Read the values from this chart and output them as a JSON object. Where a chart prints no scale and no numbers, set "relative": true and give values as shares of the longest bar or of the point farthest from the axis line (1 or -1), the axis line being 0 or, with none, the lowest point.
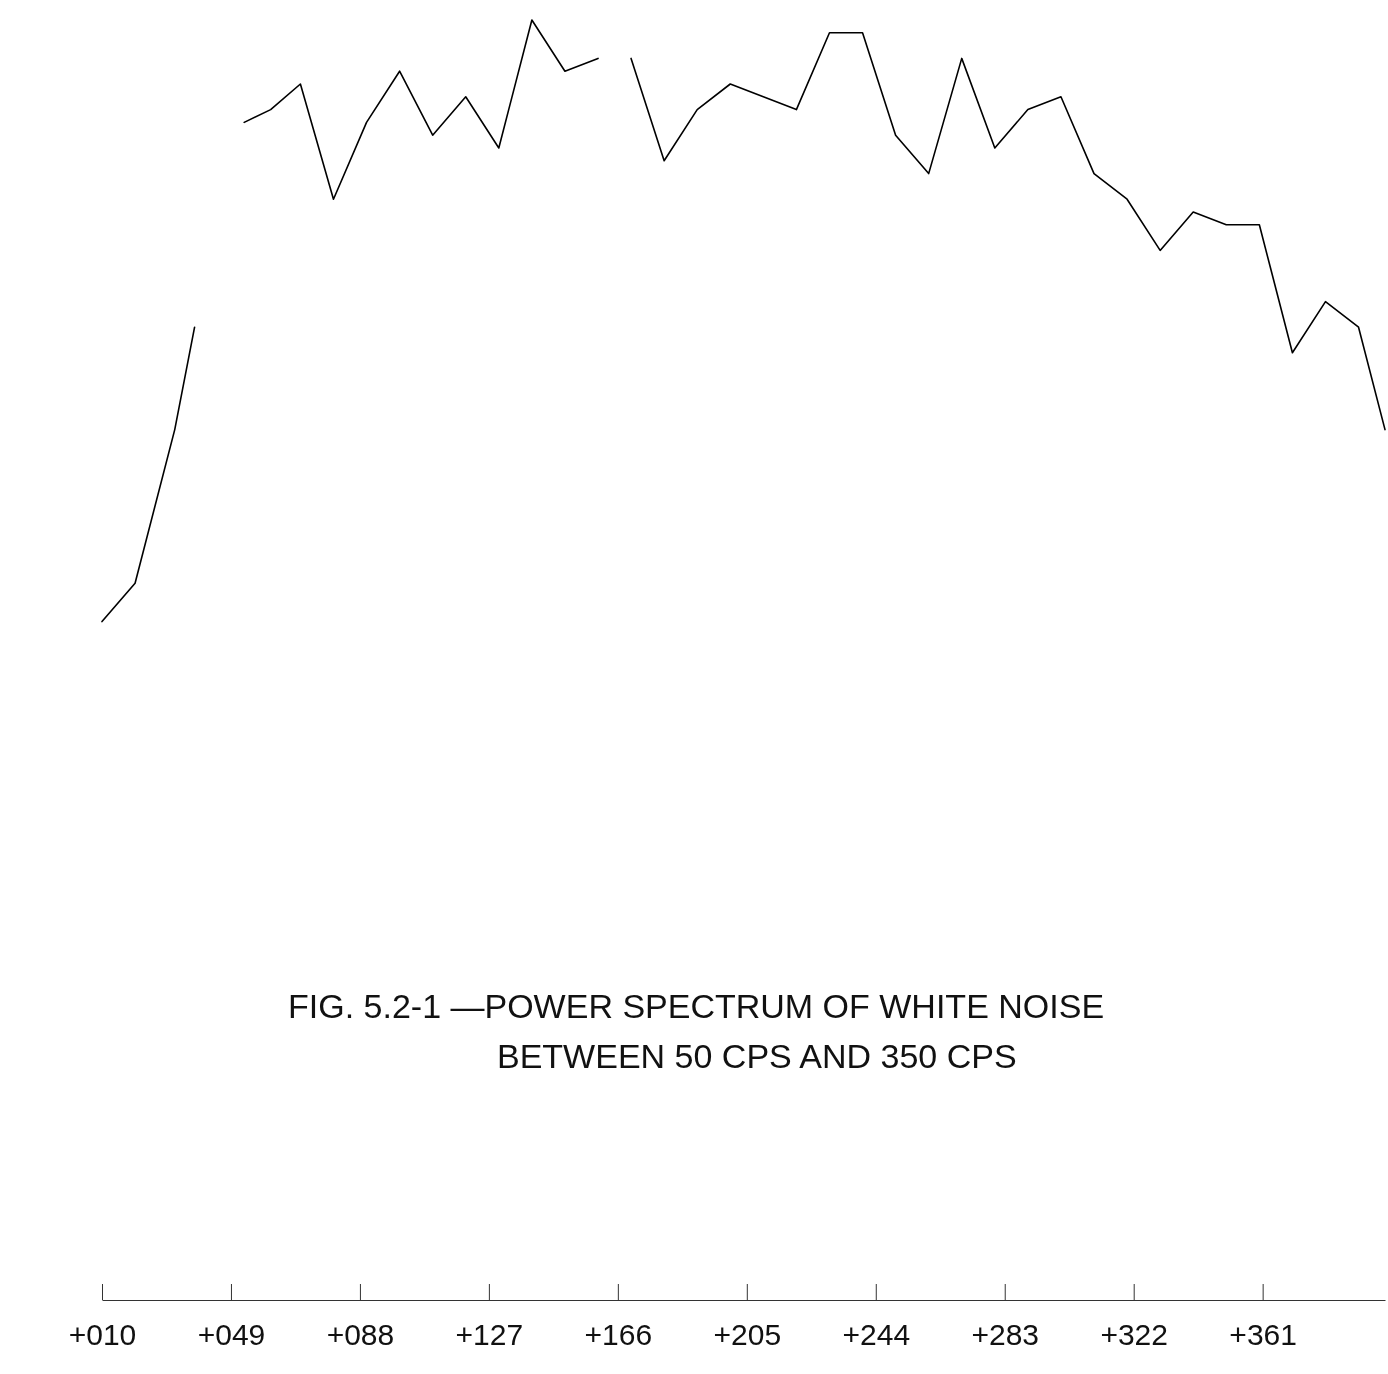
{
  "chart_data": {
    "type": "line",
    "title": "FIG. 5.2-1 —POWER SPECTRUM OF WHITE NOISE\nBETWEEN  50 CPS AND 350 CPS",
    "relative": true,
    "tick_labels": "x",
    "xlim": [
      10,
      398
    ],
    "xticks": [
      {
        "value": 10,
        "label": "+010"
      },
      {
        "value": 49,
        "label": "+049"
      },
      {
        "value": 88,
        "label": "+088"
      },
      {
        "value": 127,
        "label": "+127"
      },
      {
        "value": 166,
        "label": "+166"
      },
      {
        "value": 205,
        "label": "+205"
      },
      {
        "value": 244,
        "label": "+244"
      },
      {
        "value": 283,
        "label": "+283"
      },
      {
        "value": 322,
        "label": "+322"
      },
      {
        "value": 361,
        "label": "+361"
      }
    ],
    "series": [
      {
        "color": "#000000",
        "x": [
          10,
          20,
          32,
          38,
          45,
          53,
          61,
          70,
          80,
          90,
          100,
          110,
          120,
          130,
          140,
          150,
          160,
          165,
          170,
          180,
          190,
          200,
          210,
          220,
          230,
          240,
          250,
          260,
          270,
          280,
          290,
          300,
          310,
          320,
          330,
          340,
          350,
          360,
          370,
          380,
          390,
          398
        ],
        "values": [
          0.53,
          0.56,
          0.68,
          0.76,
          null,
          0.92,
          0.93,
          0.95,
          0.86,
          0.92,
          0.96,
          0.91,
          0.94,
          0.9,
          1,
          0.96,
          0.97,
          null,
          0.97,
          0.89,
          0.93,
          0.95,
          0.94,
          0.93,
          0.99,
          0.99,
          0.91,
          0.88,
          0.97,
          0.9,
          0.93,
          0.94,
          0.88,
          0.86,
          0.82,
          0.85,
          0.84,
          0.84,
          0.74,
          0.78,
          0.76,
          0.68
        ]
      }
    ]
  }
}
